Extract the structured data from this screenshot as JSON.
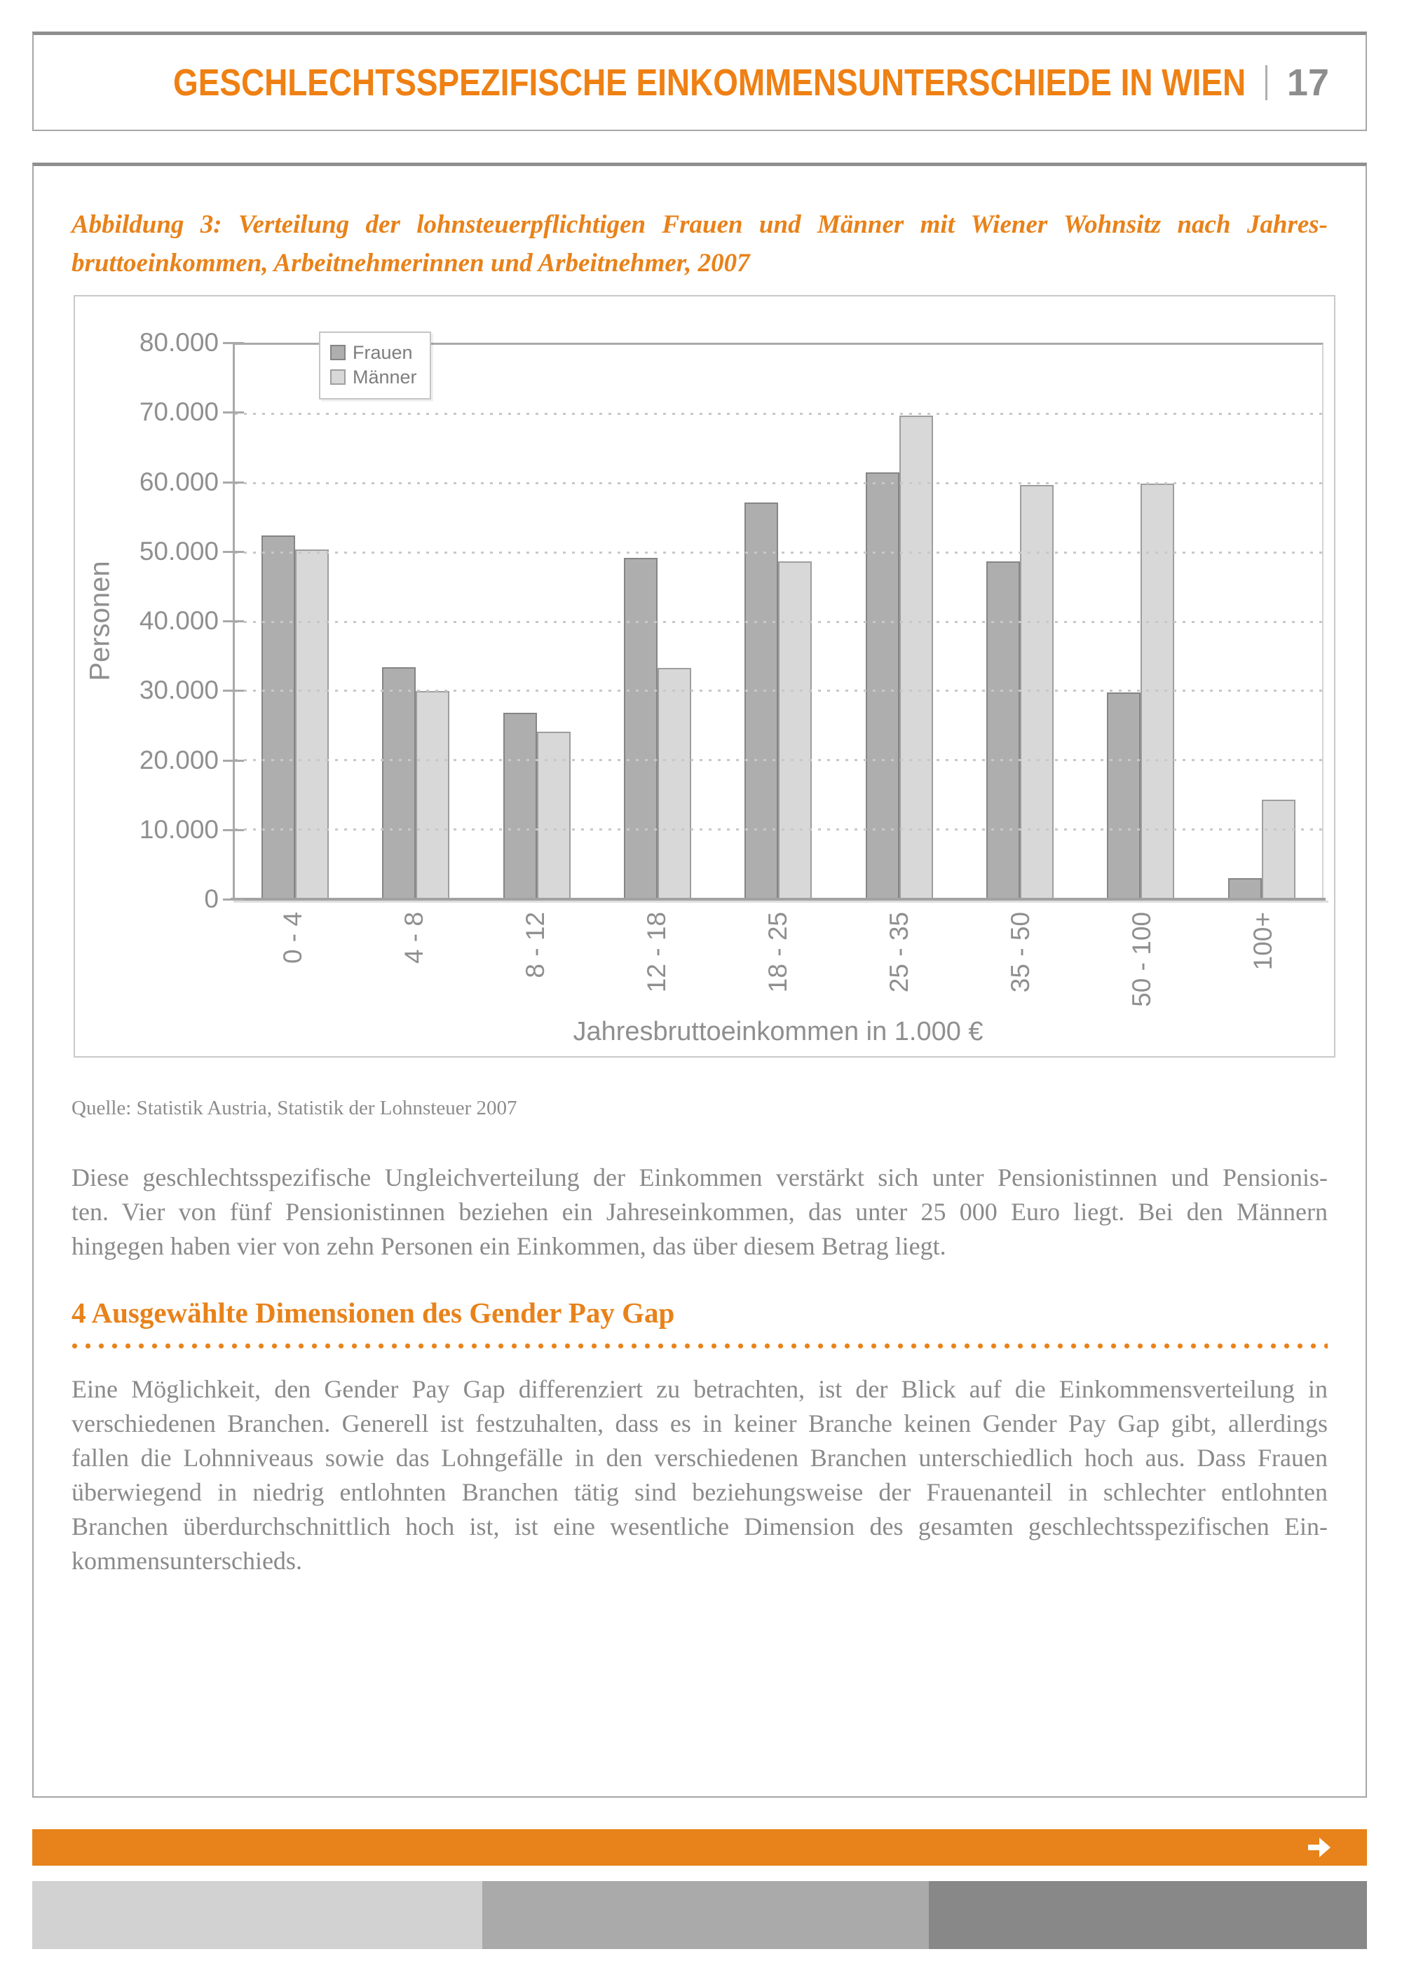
{
  "header": {
    "title": "GESCHLECHTSSPEZIFISCHE EINKOMMENSUNTERSCHIEDE IN WIEN",
    "page_number": "17"
  },
  "figure_caption": {
    "lines": [
      "Abbildung 3: Verteilung der lohnsteuerpflichtigen Frauen und Männer mit Wiener Wohnsitz nach Jahres-",
      "bruttoeinkommen, Arbeitnehmerinnen und Arbeitnehmer, 2007"
    ]
  },
  "chart_data": {
    "type": "bar",
    "title": "",
    "categories": [
      "0 - 4",
      "4 - 8",
      "8 - 12",
      "12 - 18",
      "18 - 25",
      "25 - 35",
      "35 - 50",
      "50 - 100",
      "100+"
    ],
    "series": [
      {
        "name": "Frauen",
        "color": "#aeaeae",
        "edge": "#858585",
        "values": [
          52500,
          33500,
          26900,
          49300,
          57200,
          61600,
          48800,
          29800,
          3000
        ]
      },
      {
        "name": "Männer",
        "color": "#d8d8d8",
        "edge": "#9e9e9e",
        "values": [
          50500,
          30000,
          24200,
          33400,
          48700,
          69800,
          59800,
          60000,
          14400
        ]
      }
    ],
    "xlabel": "Jahresbruttoeinkommen in 1.000 €",
    "ylabel": "Personen",
    "ylim": [
      0,
      80000
    ],
    "ytick_step": 10000,
    "ytick_labels": [
      "0",
      "10.000",
      "20.000",
      "30.000",
      "40.000",
      "50.000",
      "60.000",
      "70.000",
      "80.000"
    ],
    "grid": "horizontal-dotted",
    "legend_position": "top-left-inside",
    "x_label_rotation": -90
  },
  "source_note": "Quelle: Statistik Austria, Statistik der Lohnsteuer 2007",
  "paragraph_1": {
    "lines": [
      "Diese geschlechtsspezifische Ungleichverteilung der Einkommen verstärkt sich unter Pensionistinnen und Pensionis-",
      "ten. Vier von fünf Pensionistinnen beziehen ein Jahreseinkommen, das unter 25 000 Euro liegt. Bei den Männern",
      "hingegen haben vier von zehn Personen ein Einkommen, das über diesem Betrag liegt."
    ]
  },
  "section_heading": "4 Ausgewählte Dimensionen des Gender Pay Gap",
  "paragraph_2": {
    "lines": [
      "Eine Möglichkeit, den Gender Pay Gap differenziert zu betrachten, ist der Blick auf die Einkommensverteilung in",
      "verschiedenen Branchen. Generell ist festzuhalten, dass es in keiner Branche keinen Gender Pay Gap gibt, allerdings",
      "fallen die Lohnniveaus sowie das Lohngefälle in den verschiedenen Branchen unterschiedlich hoch aus. Dass Frauen",
      "überwiegend in niedrig entlohnten Branchen tätig sind beziehungsweise der Frauenanteil in schlechter entlohnten",
      "Branchen überdurchschnittlich hoch ist, ist eine wesentliche Dimension des gesamten geschlechtsspezifischen Ein-",
      "kommensunterschieds."
    ]
  },
  "colors": {
    "accent_orange": "#e8821a",
    "header_orange": "#ef8013",
    "body_text": "#8a8a8a",
    "chart_text": "#8f8f8f",
    "frauen_bar": "#aeaeae",
    "maenner_bar": "#d8d8d8",
    "footer_grays": [
      "#d2d2d2",
      "#aaaaaa",
      "#888888"
    ]
  }
}
